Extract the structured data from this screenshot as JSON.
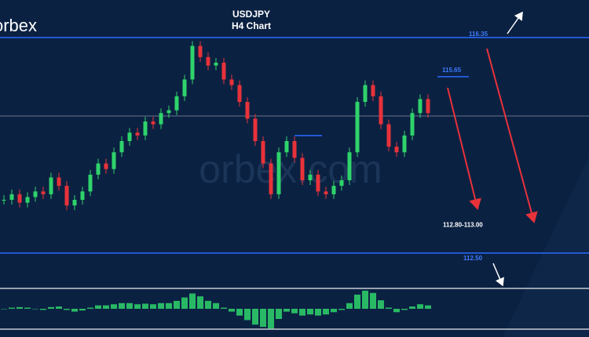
{
  "header": {
    "brand": "orbex",
    "watermark": "orbex.com"
  },
  "chart_data": {
    "type": "candlestick",
    "title": "USDJPY",
    "subtitle": "H4 Chart",
    "ylim": [
      111.0,
      117.02
    ],
    "up_color": "#2fd36b",
    "down_color": "#e8323a",
    "values": [
      113.45,
      113.55,
      113.4,
      113.5,
      113.6,
      113.55,
      113.85,
      113.7,
      113.35,
      113.45,
      113.6,
      113.9,
      114.1,
      114.0,
      114.3,
      114.5,
      114.65,
      114.6,
      114.85,
      114.8,
      115.0,
      115.05,
      115.3,
      115.6,
      116.2,
      116.0,
      115.85,
      115.9,
      115.6,
      115.5,
      115.2,
      114.9,
      114.5,
      114.1,
      113.55,
      114.3,
      114.5,
      114.2,
      113.8,
      113.9,
      113.6,
      113.55,
      113.7,
      113.8,
      114.3,
      115.2,
      115.5,
      115.3,
      114.8,
      114.4,
      114.3,
      114.6,
      115.0,
      115.25,
      115.0
    ],
    "levels": [
      {
        "value": 116.35,
        "label": "116.35"
      },
      {
        "value": 115.65,
        "label": "115.65"
      },
      {
        "value": 112.5,
        "label": "112.50"
      }
    ],
    "zone": {
      "low": 112.8,
      "high": 113.0,
      "label": "112.80-113.00"
    },
    "macd": {
      "ylim": [
        -0.36,
        0.36
      ],
      "color": "#2fd36b",
      "values": [
        0,
        0.02,
        0.03,
        0.02,
        0,
        -0.02,
        0.03,
        0.04,
        -0.02,
        -0.05,
        -0.03,
        0.02,
        0.06,
        0.06,
        0.08,
        0.1,
        0.1,
        0.08,
        0.09,
        0.08,
        0.1,
        0.1,
        0.14,
        0.2,
        0.27,
        0.22,
        0.14,
        0.1,
        0.02,
        -0.05,
        -0.12,
        -0.2,
        -0.28,
        -0.32,
        -0.35,
        -0.18,
        -0.05,
        -0.08,
        -0.12,
        -0.1,
        -0.12,
        -0.1,
        -0.06,
        -0.02,
        0.1,
        0.25,
        0.32,
        0.28,
        0.15,
        0.02,
        -0.06,
        -0.02,
        0.04,
        0.08,
        0.06
      ]
    }
  }
}
